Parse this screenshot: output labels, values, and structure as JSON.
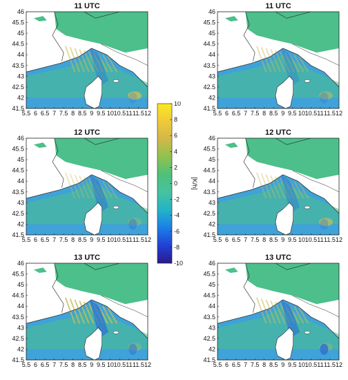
{
  "panels": [
    {
      "title": "11 UTC"
    },
    {
      "title": "11 UTC"
    },
    {
      "title": "12 UTC"
    },
    {
      "title": "12 UTC"
    },
    {
      "title": "13 UTC"
    },
    {
      "title": "13 UTC"
    }
  ],
  "axes": {
    "lon_ticks": [
      "5.5",
      "6",
      "6.5",
      "7",
      "7.5",
      "8",
      "8.5",
      "9",
      "9.5",
      "10",
      "10.5",
      "11",
      "11.5",
      "12"
    ],
    "lat_ticks": [
      "46",
      "45.5",
      "45",
      "44.5",
      "44",
      "43.5",
      "43",
      "42.5",
      "42",
      "41.5"
    ],
    "lon_range": [
      5.5,
      12
    ],
    "lat_range": [
      41.5,
      46
    ]
  },
  "colorbar": {
    "label": "[K/h]",
    "ticks": [
      "10",
      "8",
      "6",
      "4",
      "2",
      "0",
      "-2",
      "-4",
      "-6",
      "-8",
      "-10"
    ],
    "range": [
      -10,
      10
    ],
    "colors": [
      "#2b1a8a",
      "#2140d6",
      "#1b7fe6",
      "#23b3c8",
      "#45c3a0",
      "#4fc07a",
      "#8fc24e",
      "#d2b84a",
      "#f0c93a",
      "#f8ea20"
    ]
  },
  "map_colors": {
    "field_base": "#4cbf8a",
    "sea_blue": "#3fa2d8",
    "warm": "#c7be5e",
    "cold": "#2a6fd6",
    "land_blank": "#ffffff",
    "border": "#222222"
  }
}
